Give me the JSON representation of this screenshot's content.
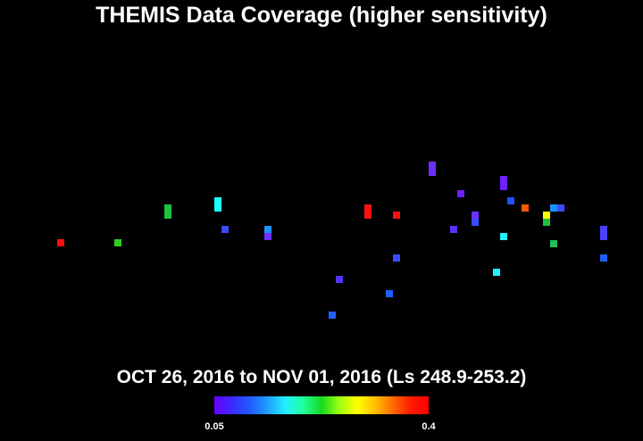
{
  "title": "THEMIS Data Coverage (higher sensitivity)",
  "subtitle": "OCT 26, 2016 to NOV 01, 2016 (Ls 248.9-253.2)",
  "colorbar": {
    "min_label": "0.05",
    "max_label": "0.4",
    "colors": [
      "#6a00ff",
      "#3a2bff",
      "#1f5bff",
      "#1ea0ff",
      "#22f0ff",
      "#20ff99",
      "#15d820",
      "#a0ff10",
      "#ffff00",
      "#ffc000",
      "#ff6a00",
      "#ff1a00",
      "#ff0000"
    ]
  },
  "chart_data": {
    "type": "heatmap",
    "description_scale": "coverage markers colored by value between 0.05 and 0.4",
    "markers": [
      {
        "id": 1,
        "color": "#ff1010"
      },
      {
        "id": 2,
        "color": "#30d020"
      },
      {
        "id": 3,
        "color": "#20c040"
      },
      {
        "id": 4,
        "color": "#20ffff"
      },
      {
        "id": 5,
        "color": "#3a4bff"
      },
      {
        "id": 6,
        "color": "#1e90ff"
      },
      {
        "id": 7,
        "color": "#6a30ff"
      },
      {
        "id": 8,
        "color": "#ff1010"
      },
      {
        "id": 9,
        "color": "#ff1010"
      },
      {
        "id": 10,
        "color": "#3a4bff"
      },
      {
        "id": 11,
        "color": "#5a30ff"
      },
      {
        "id": 12,
        "color": "#1e60ff"
      },
      {
        "id": 13,
        "color": "#2060ff"
      },
      {
        "id": 14,
        "color": "#6a30ff"
      },
      {
        "id": 15,
        "color": "#5a30ff"
      },
      {
        "id": 16,
        "color": "#7020ff"
      },
      {
        "id": 17,
        "color": "#3a4bff"
      },
      {
        "id": 18,
        "color": "#7020ff"
      },
      {
        "id": 19,
        "color": "#22f0ff"
      },
      {
        "id": 20,
        "color": "#22f0ff"
      },
      {
        "id": 21,
        "color": "#ff5a00"
      },
      {
        "id": 22,
        "color": "#ffff00"
      },
      {
        "id": 23,
        "color": "#20c040"
      },
      {
        "id": 24,
        "color": "#1e90ff"
      },
      {
        "id": 25,
        "color": "#3a4bff"
      },
      {
        "id": 26,
        "color": "#20c060"
      },
      {
        "id": 27,
        "color": "#4a40ff"
      },
      {
        "id": 28,
        "color": "#1e60ff"
      },
      {
        "id": 29,
        "color": "#2050ff"
      },
      {
        "id": 30,
        "color": "#6a30ff"
      }
    ]
  }
}
